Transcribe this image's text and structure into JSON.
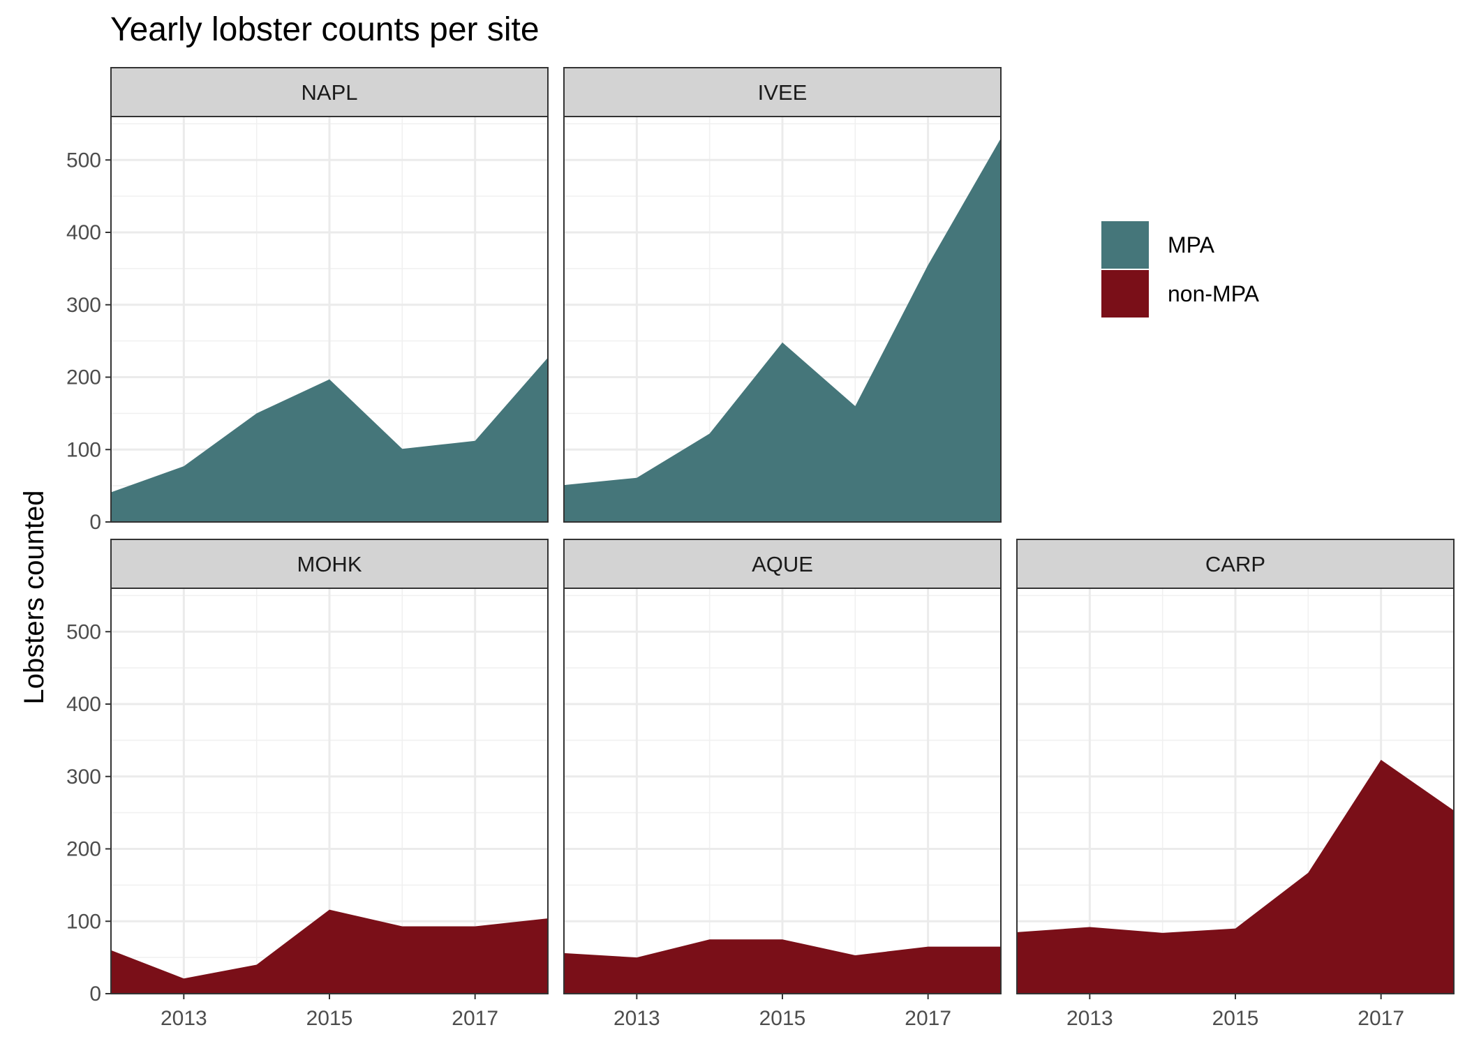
{
  "chart_data": {
    "type": "area",
    "title": "Yearly lobster counts per site",
    "xlabel": "",
    "ylabel": "Lobsters counted",
    "xlim": [
      2012,
      2018
    ],
    "ylim": [
      0,
      560
    ],
    "x_ticks": [
      2013,
      2015,
      2017
    ],
    "y_ticks": [
      0,
      100,
      200,
      300,
      400,
      500
    ],
    "grid": true,
    "legend_position": "right",
    "legend": [
      {
        "label": "MPA",
        "color": "#45767a"
      },
      {
        "label": "non-MPA",
        "color": "#7a0f18"
      }
    ],
    "x": [
      2012,
      2013,
      2014,
      2015,
      2016,
      2017,
      2018
    ],
    "facets": [
      {
        "site": "NAPL",
        "group": "MPA",
        "values": [
          41,
          77,
          150,
          197,
          101,
          112,
          227
        ]
      },
      {
        "site": "IVEE",
        "group": "MPA",
        "values": [
          51,
          61,
          122,
          248,
          160,
          355,
          530
        ]
      },
      {
        "site": "MOHK",
        "group": "non-MPA",
        "values": [
          60,
          21,
          40,
          116,
          93,
          93,
          104
        ]
      },
      {
        "site": "AQUE",
        "group": "non-MPA",
        "values": [
          56,
          50,
          75,
          75,
          53,
          65,
          65
        ]
      },
      {
        "site": "CARP",
        "group": "non-MPA",
        "values": [
          85,
          92,
          84,
          90,
          167,
          323,
          253
        ]
      }
    ]
  }
}
